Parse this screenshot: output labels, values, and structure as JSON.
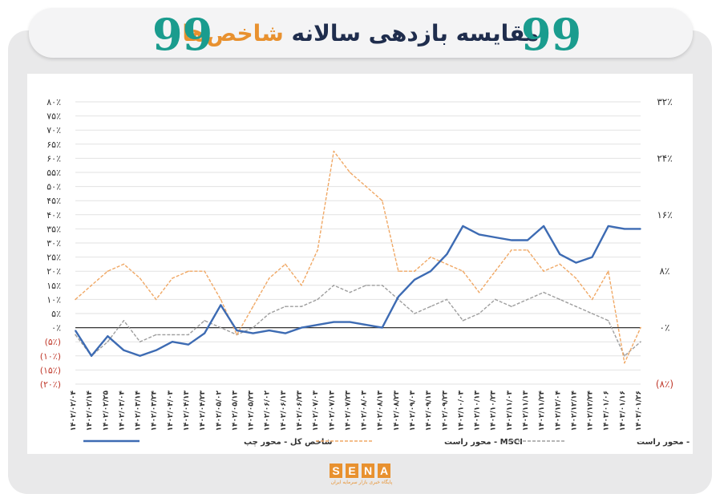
{
  "header": {
    "title_main": "مقایسه بازدهی سالانه ",
    "title_accent": "شاخص‌ها",
    "quote_glyph": "99"
  },
  "chart_data": {
    "type": "line",
    "x": [
      "۱۴۰۲/۰۲/۰۴",
      "۱۴۰۲/۰۲/۱۴",
      "۱۴۰۲/۰۲/۲۵",
      "۱۴۰۲/۰۳/۰۴",
      "۱۴۰۲/۰۳/۱۴",
      "۱۴۰۲/۰۳/۲۴",
      "۱۴۰۲/۰۴/۰۳",
      "۱۴۰۲/۰۴/۱۳",
      "۱۴۰۲/۰۴/۲۳",
      "۱۴۰۲/۰۵/۰۲",
      "۱۴۰۲/۰۵/۱۳",
      "۱۴۰۲/۰۵/۲۳",
      "۱۴۰۲/۰۶/۰۲",
      "۱۴۰۲/۰۶/۱۳",
      "۱۴۰۲/۰۶/۲۳",
      "۱۴۰۲/۰۷/۰۳",
      "۱۴۰۲/۰۷/۱۳",
      "۱۴۰۲/۰۷/۲۳",
      "۱۴۰۲/۰۸/۰۳",
      "۱۴۰۲/۰۸/۱۳",
      "۱۴۰۲/۰۸/۲۳",
      "۱۴۰۲/۰۹/۰۳",
      "۱۴۰۲/۰۹/۱۳",
      "۱۴۰۲/۰۹/۲۳",
      "۱۴۰۲/۱۰/۰۳",
      "۱۴۰۲/۱۰/۱۳",
      "۱۴۰۲/۱۰/۲۳",
      "۱۴۰۲/۱۱/۰۳",
      "۱۴۰۲/۱۱/۱۳",
      "۱۴۰۲/۱۱/۲۴",
      "۱۴۰۲/۱۲/۰۴",
      "۱۴۰۲/۱۲/۱۴",
      "۱۴۰۲/۱۲/۲۴",
      "۱۴۰۳/۰۱/۰۶",
      "۱۴۰۳/۰۱/۱۶",
      "۱۴۰۳/۰۱/۲۶"
    ],
    "y_left_ticks": [
      "۸۰٪",
      "۷۵٪",
      "۷۰٪",
      "۶۵٪",
      "۶۰٪",
      "۵۵٪",
      "۵۰٪",
      "۴۵٪",
      "۴۰٪",
      "۳۵٪",
      "۳۰٪",
      "۲۵٪",
      "۲۰٪",
      "۱۵٪",
      "۱۰٪",
      "۵٪",
      "۰٪",
      "(۵٪)",
      "(۱۰٪)",
      "(۱۵٪)",
      "(۲۰٪)"
    ],
    "y_right_ticks": [
      "۳۲٪",
      "۲۴٪",
      "۱۶٪",
      "۸٪",
      "۰٪",
      "(۸٪)"
    ],
    "ylim_left": [
      -20,
      80
    ],
    "ylim_right": [
      -8,
      32
    ],
    "series": [
      {
        "name": "شاخص کل - محور چپ",
        "axis": "left",
        "color": "#3d6bb3",
        "style": "solid",
        "values": [
          -1,
          -10,
          -3,
          -8,
          -10,
          -8,
          -5,
          -6,
          -2,
          8,
          -1,
          -2,
          -1,
          -2,
          0,
          1,
          2,
          2,
          1,
          0,
          11,
          17,
          20,
          26,
          36,
          33,
          32,
          31,
          31,
          36,
          26,
          23,
          25,
          36,
          35,
          35
        ]
      },
      {
        "name": "MSCI - محور راست",
        "axis": "right",
        "color": "#f0a865",
        "style": "dashed",
        "values": [
          4,
          6,
          8,
          9,
          7,
          4,
          7,
          8,
          8,
          4,
          -1,
          3,
          7,
          9,
          6,
          11,
          25,
          22,
          20,
          18,
          8,
          8,
          10,
          9,
          8,
          5,
          8,
          11,
          11,
          8,
          9,
          7,
          4,
          8,
          -5,
          0
        ]
      },
      {
        "name": "COMCEC - محور راست",
        "axis": "right",
        "color": "#9e9e9e",
        "style": "dashed",
        "values": [
          -1,
          -4,
          -2,
          1,
          -2,
          -1,
          -1,
          -1,
          1,
          0,
          -1,
          0,
          2,
          3,
          3,
          4,
          6,
          5,
          6,
          6,
          4,
          2,
          3,
          4,
          1,
          2,
          4,
          3,
          4,
          5,
          4,
          3,
          2,
          1,
          -4,
          -2
        ]
      }
    ],
    "grid": true,
    "legend_position": "bottom"
  },
  "legend": [
    {
      "label": "شاخص کل - محور چپ",
      "color": "#3d6bb3"
    },
    {
      "label": "MSCI - محور راست",
      "color": "#f0a865"
    },
    {
      "label": "COMCEC - محور راست",
      "color": "#9e9e9e"
    }
  ],
  "logo": {
    "letters": [
      "S",
      "E",
      "N",
      "A"
    ],
    "subtitle": "پایگاه خبری بازار سرمایه ایران"
  }
}
